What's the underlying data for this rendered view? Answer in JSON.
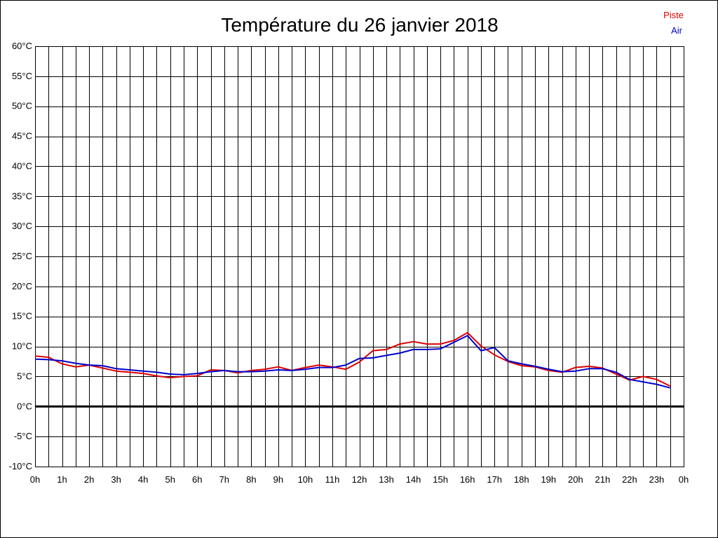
{
  "chart_data": {
    "type": "line",
    "title": "Température du 26 janvier 2018",
    "xlabel": "",
    "ylabel": "",
    "xlim": [
      0,
      24
    ],
    "ylim": [
      -10,
      60
    ],
    "y_ticks": [
      -10,
      -5,
      0,
      5,
      10,
      15,
      20,
      25,
      30,
      35,
      40,
      45,
      50,
      55,
      60
    ],
    "y_tick_labels": [
      "-10°C",
      "-5°C",
      "0°C",
      "5°C",
      "10°C",
      "15°C",
      "20°C",
      "25°C",
      "30°C",
      "35°C",
      "40°C",
      "45°C",
      "50°C",
      "55°C",
      "60°C"
    ],
    "x_ticks": [
      0,
      1,
      2,
      3,
      4,
      5,
      6,
      7,
      8,
      9,
      10,
      11,
      12,
      13,
      14,
      15,
      16,
      17,
      18,
      19,
      20,
      21,
      22,
      23,
      24
    ],
    "x_tick_labels": [
      "0h",
      "1h",
      "2h",
      "3h",
      "4h",
      "5h",
      "6h",
      "7h",
      "8h",
      "9h",
      "10h",
      "11h",
      "12h",
      "13h",
      "14h",
      "15h",
      "16h",
      "17h",
      "18h",
      "19h",
      "20h",
      "21h",
      "22h",
      "23h",
      "0h"
    ],
    "grid": true,
    "grid_minor_x": true,
    "zero_line": true,
    "legend_position": "top-right",
    "series": [
      {
        "name": "Piste",
        "color": "#dd0000",
        "x": [
          0,
          0.5,
          1,
          1.5,
          2,
          2.5,
          3,
          3.5,
          4,
          4.5,
          5,
          5.5,
          6,
          6.5,
          7,
          7.5,
          8,
          8.5,
          9,
          9.5,
          10,
          10.5,
          11,
          11.5,
          12,
          12.5,
          13,
          13.5,
          14,
          14.5,
          15,
          15.5,
          16,
          16.5,
          17,
          17.5,
          18,
          18.5,
          19,
          19.5,
          20,
          20.5,
          21,
          21.5,
          22,
          22.5,
          23,
          23.5
        ],
        "values": [
          8.4,
          8.2,
          7.1,
          6.6,
          6.9,
          6.4,
          5.9,
          5.7,
          5.5,
          5.1,
          4.8,
          5.0,
          5.1,
          6.1,
          6.0,
          5.6,
          6.0,
          6.2,
          6.6,
          6.0,
          6.5,
          6.9,
          6.6,
          6.2,
          7.4,
          9.3,
          9.5,
          10.4,
          10.8,
          10.4,
          10.4,
          11.0,
          12.3,
          10.1,
          8.6,
          7.5,
          6.8,
          6.6,
          6.0,
          5.7,
          6.5,
          6.7,
          6.4,
          5.4,
          4.4,
          5.0,
          4.5,
          3.4
        ]
      },
      {
        "name": "Air",
        "color": "#0000cc",
        "x": [
          0,
          0.5,
          1,
          1.5,
          2,
          2.5,
          3,
          3.5,
          4,
          4.5,
          5,
          5.5,
          6,
          6.5,
          7,
          7.5,
          8,
          8.5,
          9,
          9.5,
          10,
          10.5,
          11,
          11.5,
          12,
          12.5,
          13,
          13.5,
          14,
          14.5,
          15,
          15.5,
          16,
          16.5,
          17,
          17.5,
          18,
          18.5,
          19,
          19.5,
          20,
          20.5,
          21,
          21.5,
          22,
          22.5,
          23,
          23.5
        ],
        "values": [
          7.9,
          7.8,
          7.6,
          7.2,
          6.9,
          6.8,
          6.3,
          6.1,
          5.9,
          5.7,
          5.4,
          5.3,
          5.5,
          5.8,
          6.0,
          5.8,
          5.8,
          5.9,
          6.1,
          6.0,
          6.2,
          6.5,
          6.5,
          6.9,
          8.0,
          8.1,
          8.5,
          8.9,
          9.5,
          9.5,
          9.6,
          10.7,
          11.8,
          9.3,
          9.8,
          7.6,
          7.1,
          6.7,
          6.2,
          5.8,
          5.9,
          6.3,
          6.3,
          5.7,
          4.5,
          4.1,
          3.7,
          3.1
        ]
      }
    ]
  }
}
